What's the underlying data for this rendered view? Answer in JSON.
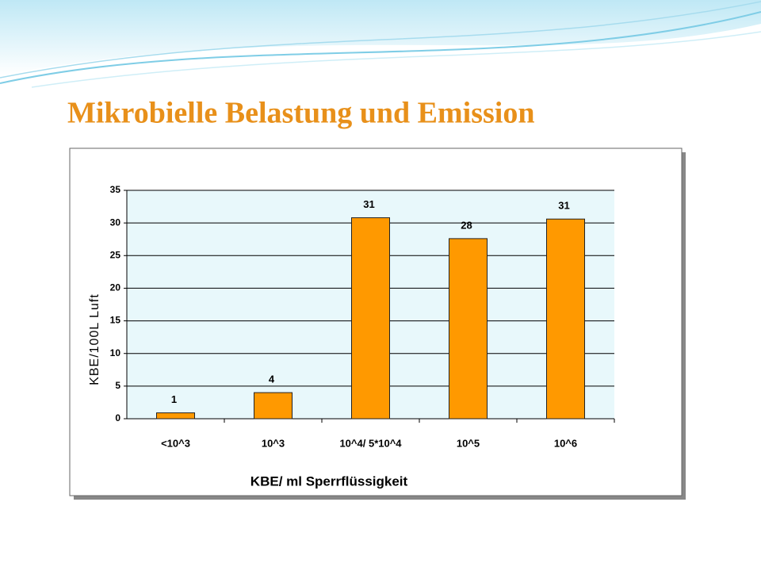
{
  "slide_title": "Mikrobielle Belastung und Emission",
  "chart_data": {
    "type": "bar",
    "x_label": "KBE/ ml Sperrflüssigkeit",
    "y_label": "KBE/100L Luft",
    "categories": [
      "<10^3",
      "10^3",
      "10^4/ 5*10^4",
      "10^5",
      "10^6"
    ],
    "values": [
      0.9,
      4,
      30.8,
      27.6,
      30.6
    ],
    "value_labels": [
      "1",
      "4",
      "31",
      "28",
      "31"
    ],
    "color": "#ff9900",
    "ylim": [
      0,
      35
    ],
    "yticks": [
      0,
      5,
      10,
      15,
      20,
      25,
      30,
      35
    ],
    "grid": true
  }
}
